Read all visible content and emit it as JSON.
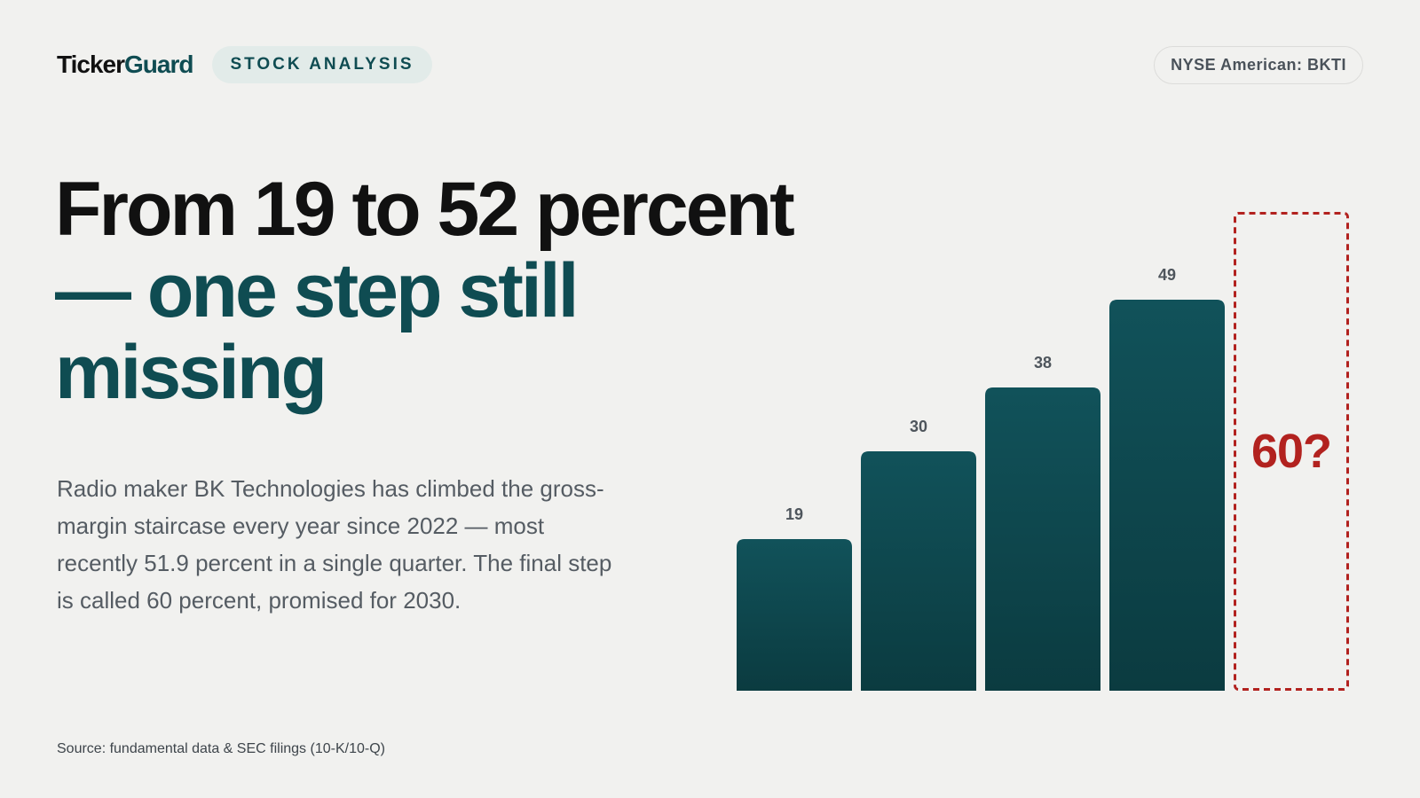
{
  "brand": {
    "name_main": "Ticker",
    "name_accent": "Guard"
  },
  "tag": "STOCK ANALYSIS",
  "ticker": "NYSE American: BKTI",
  "headline": {
    "line1": "From 19 to 52 percent",
    "line2": "— one step still missing"
  },
  "body": "Radio maker BK Technologies has climbed the gross-margin staircase every year since 2022 — most recently 51.9 percent in a single quarter. The final step is called 60 percent, promised for 2030.",
  "source": "Source: fundamental data & SEC filings (10-K/10-Q)",
  "colors": {
    "bar": "#0f4c52",
    "target": "#b2221f",
    "accent": "#0f4c52"
  },
  "chart_data": {
    "type": "bar",
    "values": [
      19,
      30,
      38,
      49
    ],
    "data_labels": [
      "19",
      "30",
      "38",
      "49"
    ],
    "target": {
      "value": 60,
      "label": "60?",
      "style": "dashed outline"
    },
    "ylim": [
      0,
      60
    ],
    "grid": false
  }
}
